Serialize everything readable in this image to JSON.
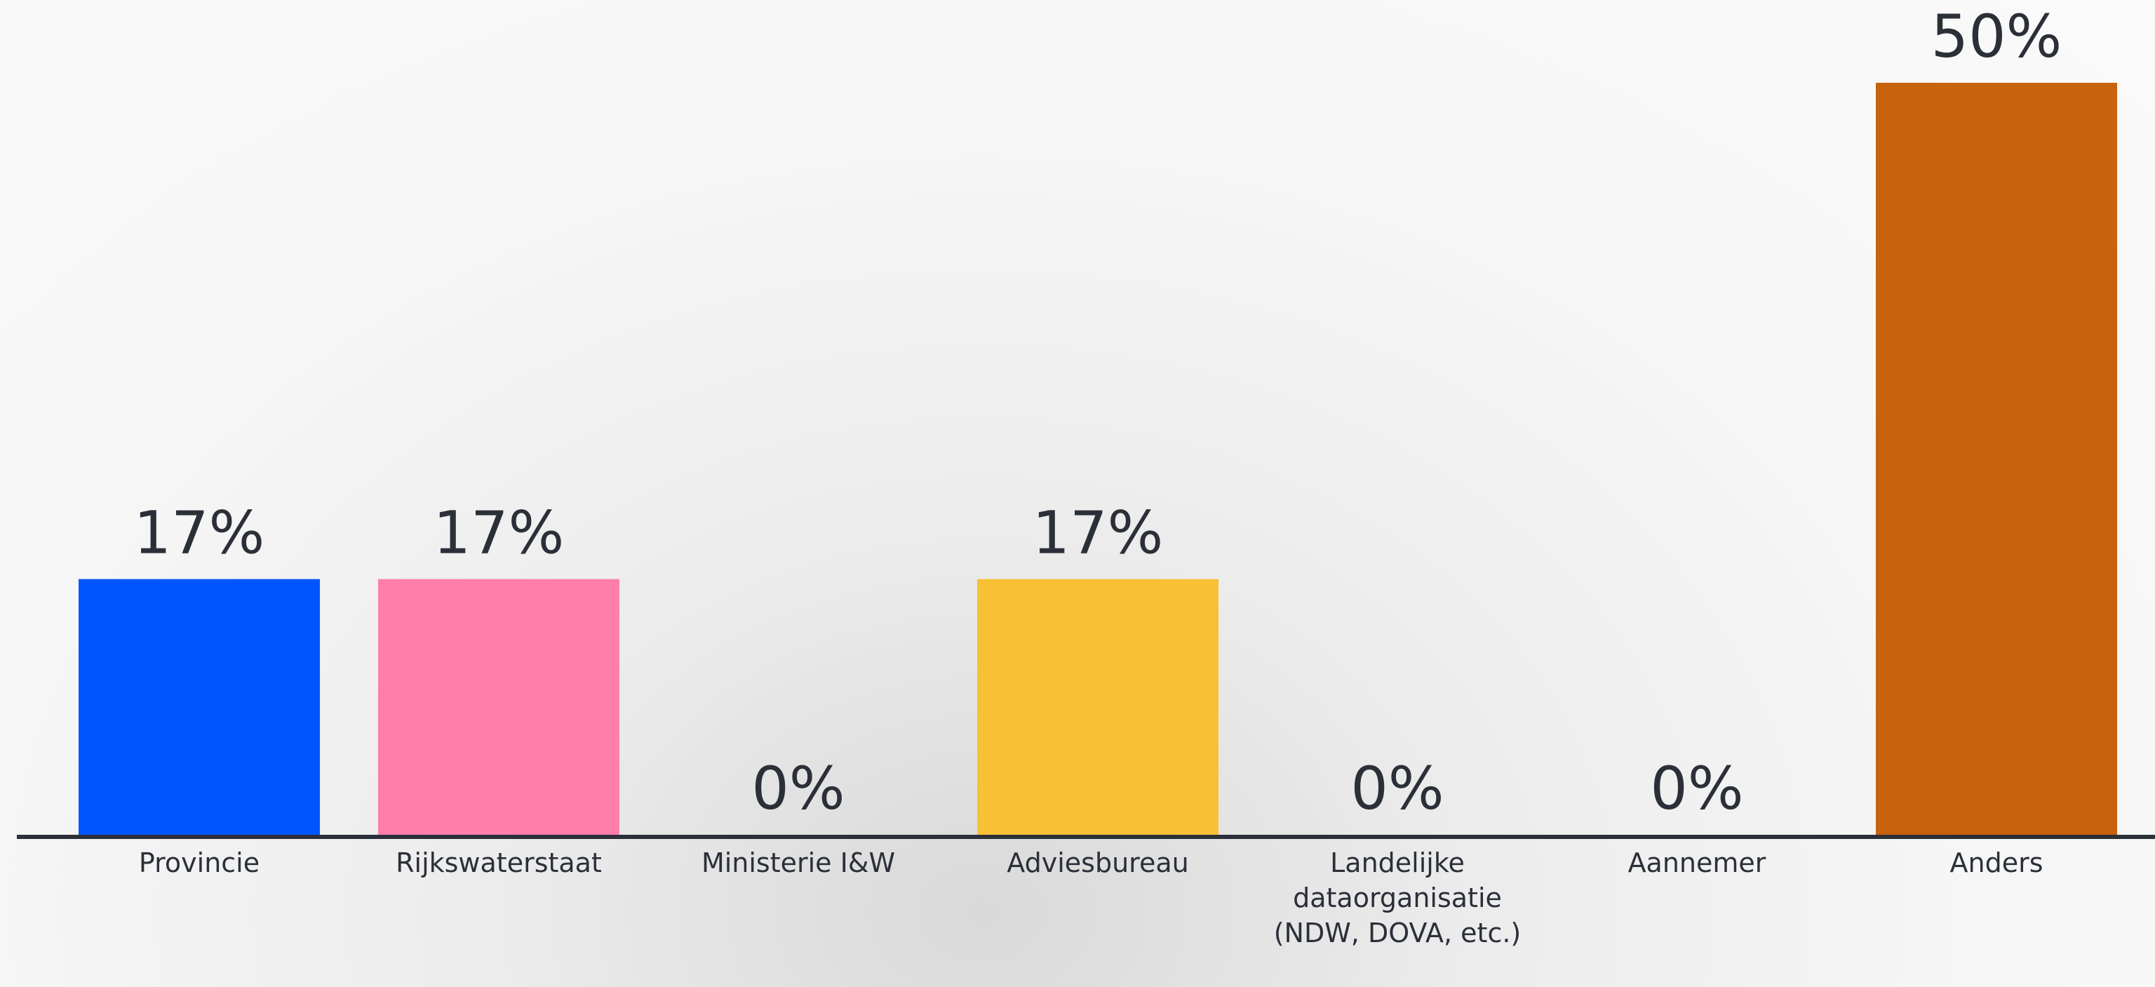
{
  "chart_data": {
    "type": "bar",
    "categories": [
      "Provincie",
      "Rijkswaterstaat",
      "Ministerie I&W",
      "Adviesbureau",
      "Landelijke dataorganisatie (NDW, DOVA, etc.)",
      "Aannemer",
      "Anders"
    ],
    "values": [
      17,
      17,
      0,
      17,
      0,
      0,
      50
    ],
    "value_labels": [
      "17%",
      "17%",
      "0%",
      "17%",
      "0%",
      "0%",
      "50%"
    ],
    "colors": [
      "#0055ff",
      "#ff7eaa",
      null,
      "#f8c035",
      null,
      null,
      "#c8620c"
    ],
    "ylim": [
      0,
      50
    ]
  }
}
